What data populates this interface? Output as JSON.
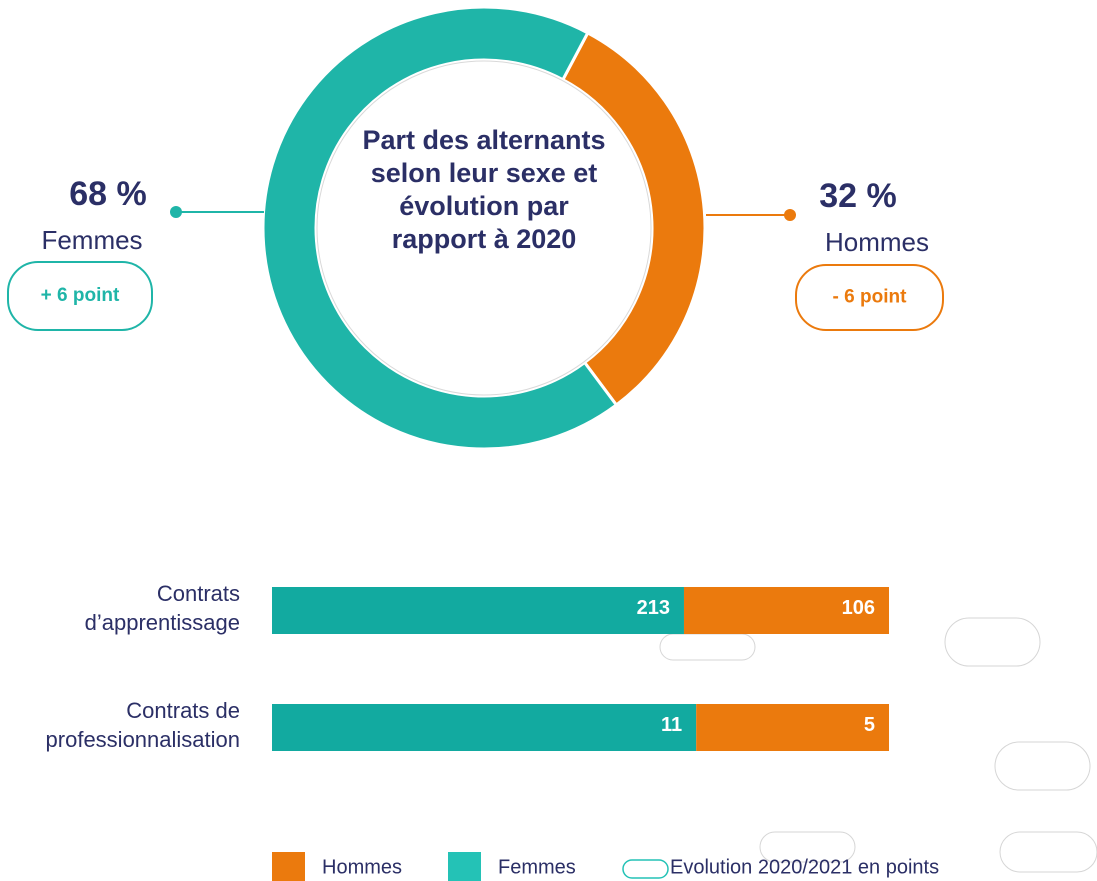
{
  "chart_data": [
    {
      "type": "donut",
      "title": "Part des alternants selon leur sexe et évolution par rapport à 2020",
      "categories": [
        "Femmes",
        "Hommes"
      ],
      "values": [
        68,
        32
      ],
      "value_labels": [
        "68 %",
        "32 %"
      ],
      "colors": [
        "#1fb5a8",
        "#eb7a0d"
      ],
      "changes": [
        "+ 6 point",
        "- 6 point"
      ]
    },
    {
      "type": "bar",
      "orientation": "horizontal",
      "stacked": "percent",
      "categories": [
        "Contrats d’apprentissage",
        "Contrats de professionnalisation"
      ],
      "series": [
        {
          "name": "Femmes",
          "color": "#12aaa0",
          "values": [
            213,
            11
          ]
        },
        {
          "name": "Hommes",
          "color": "#eb7a0d",
          "values": [
            106,
            5
          ]
        }
      ],
      "legend_note": "Evolution 2020/2021 en points"
    }
  ]
}
